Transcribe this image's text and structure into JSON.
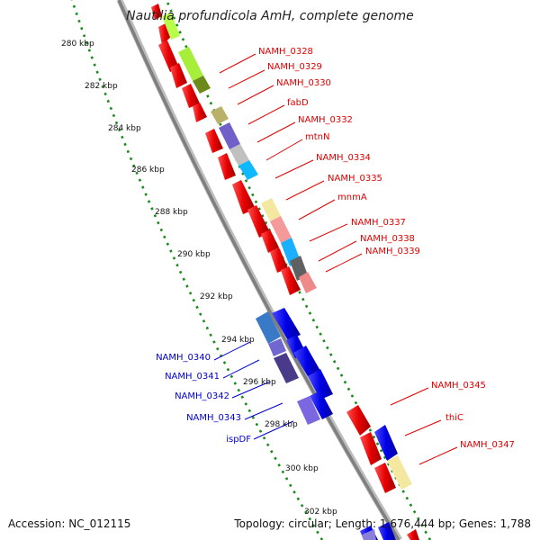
{
  "title": "Nautilia profundicola AmH, complete genome",
  "footer": {
    "accession": "Accession: NC_012115",
    "topology": "Topology: circular; Length: 1,676,444 bp; Genes: 1,788"
  },
  "colors": {
    "backbone": "#8a8a8a",
    "tick": "#1a8a1a",
    "forward_label": "#e00000",
    "reverse_label": "#0000d0"
  },
  "kbp_labels": [
    "280 kbp",
    "282 kbp",
    "284 kbp",
    "286 kbp",
    "288 kbp",
    "290 kbp",
    "292 kbp",
    "294 kbp",
    "296 kbp",
    "298 kbp",
    "300 kbp",
    "302 kbp"
  ],
  "gene_labels_forward": [
    "NAMH_0328",
    "NAMH_0329",
    "NAMH_0330",
    "fabD",
    "NAMH_0332",
    "mtnN",
    "NAMH_0334",
    "NAMH_0335",
    "mnmA",
    "NAMH_0337",
    "NAMH_0338",
    "NAMH_0339",
    "NAMH_0345",
    "thiC",
    "NAMH_0347"
  ],
  "gene_labels_reverse": [
    "NAMH_0340",
    "NAMH_0341",
    "NAMH_0342",
    "NAMH_0343",
    "ispDF"
  ]
}
